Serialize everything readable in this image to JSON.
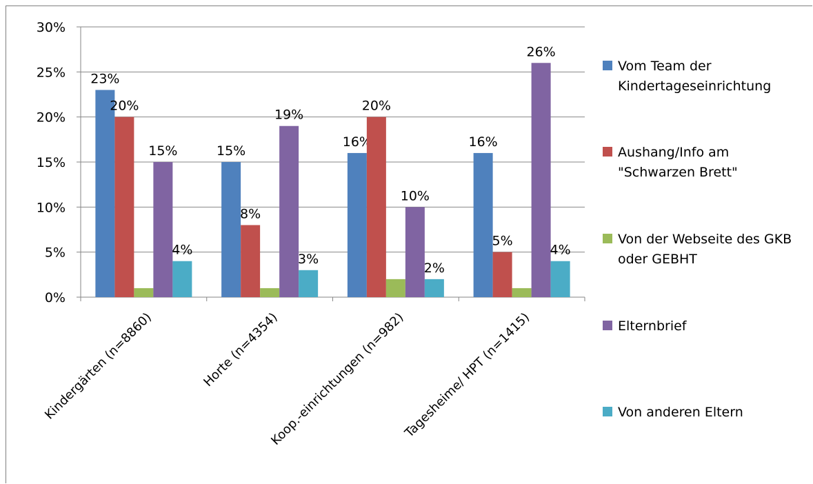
{
  "chart_data": {
    "type": "bar",
    "categories": [
      "Kindergärten (n=8860)",
      "Horte (n=4354)",
      "Koop.-einrichtungen (n=982)",
      "Tagesheime/ HPT (n=1415)"
    ],
    "series": [
      {
        "name": "Vom Team der Kindertageseinrichtung",
        "color": "#4f81bd",
        "values": [
          23,
          15,
          16,
          16
        ],
        "labels": [
          "23%",
          "15%",
          "16%",
          "16%"
        ]
      },
      {
        "name": "Aushang/Info am \"Schwarzen Brett\"",
        "color": "#c0504d",
        "values": [
          20,
          8,
          20,
          5
        ],
        "labels": [
          "20%",
          "8%",
          "20%",
          "5%"
        ]
      },
      {
        "name": "Von der Webseite des GKB oder GEBHT",
        "color": "#9bbb59",
        "values": [
          1,
          1,
          2,
          1
        ],
        "labels": [
          "",
          "",
          "",
          ""
        ]
      },
      {
        "name": "Elternbrief",
        "color": "#8064a2",
        "values": [
          15,
          19,
          10,
          26
        ],
        "labels": [
          "15%",
          "19%",
          "10%",
          "26%"
        ]
      },
      {
        "name": "Von anderen Eltern",
        "color": "#4bacc6",
        "values": [
          4,
          3,
          2,
          4
        ],
        "labels": [
          "4%",
          "3%",
          "2%",
          "4%"
        ]
      }
    ],
    "y_ticks": [
      "0%",
      "5%",
      "10%",
      "15%",
      "20%",
      "25%",
      "30%"
    ],
    "ylim": [
      0,
      30
    ],
    "grid": true,
    "legend_position": "right"
  }
}
